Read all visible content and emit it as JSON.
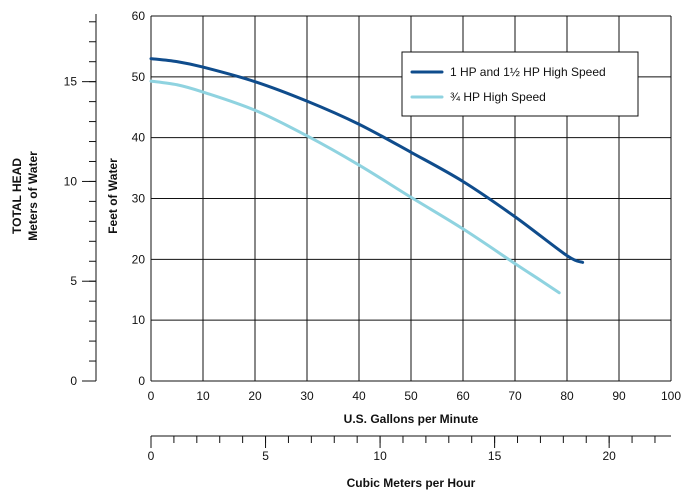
{
  "chart_data": {
    "type": "line",
    "x": {
      "label": "U.S. Gallons per Minute",
      "range": [
        0,
        100
      ],
      "ticks": [
        "0",
        "10",
        "20",
        "30",
        "40",
        "50",
        "60",
        "70",
        "80",
        "90",
        "100"
      ]
    },
    "x2": {
      "label": "Cubic Meters per Hour",
      "range": [
        0,
        22.7
      ],
      "ticks": [
        "0",
        "5",
        "10",
        "15",
        "20"
      ],
      "minor_step": 1
    },
    "y": {
      "label": "Feet of Water",
      "range": [
        0,
        60
      ],
      "ticks": [
        "0",
        "10",
        "20",
        "30",
        "40",
        "50",
        "60"
      ]
    },
    "y2": {
      "label_line1": "TOTAL HEAD",
      "label_line2": "Meters of Water",
      "range": [
        0,
        18.29
      ],
      "ticks": [
        "0",
        "5",
        "10",
        "15"
      ],
      "minor_step": 1
    },
    "grid": true,
    "legend_position": "top-right",
    "series": [
      {
        "name": "1 HP and 1½ HP High Speed",
        "color": "#0f4c8c",
        "points": [
          [
            0,
            53
          ],
          [
            5,
            52.5
          ],
          [
            10,
            51.6
          ],
          [
            20,
            49.2
          ],
          [
            30,
            46
          ],
          [
            40,
            42.2
          ],
          [
            50,
            37.6
          ],
          [
            60,
            32.8
          ],
          [
            70,
            27
          ],
          [
            80,
            20.6
          ],
          [
            83,
            19.5
          ]
        ]
      },
      {
        "name": "¾ HP High Speed",
        "color": "#8fd3e0",
        "points": [
          [
            0,
            49.3
          ],
          [
            5,
            48.7
          ],
          [
            10,
            47.5
          ],
          [
            20,
            44.5
          ],
          [
            30,
            40.3
          ],
          [
            40,
            35.5
          ],
          [
            50,
            30.2
          ],
          [
            60,
            25
          ],
          [
            70,
            19.3
          ],
          [
            75,
            16.5
          ],
          [
            78.5,
            14.5
          ]
        ]
      }
    ]
  }
}
